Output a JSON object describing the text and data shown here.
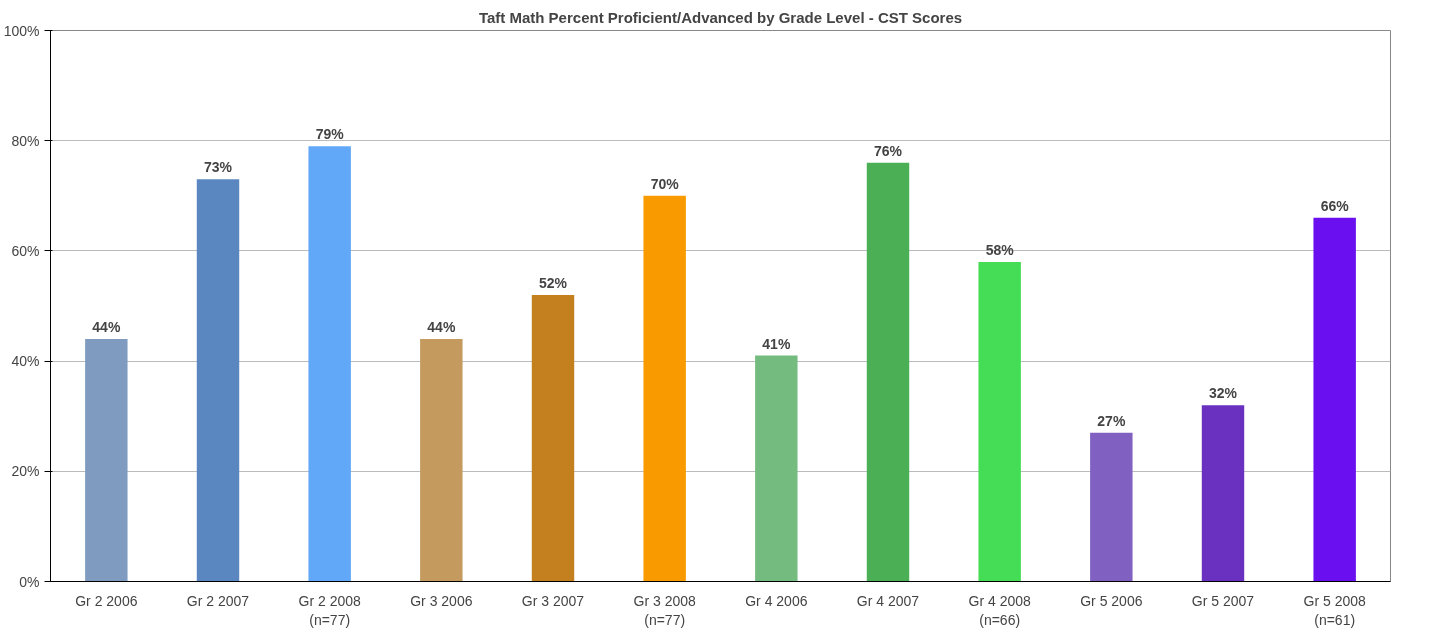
{
  "chart_data": {
    "type": "bar",
    "title": "Taft Math Percent Proficient/Advanced by Grade Level - CST Scores",
    "categories": [
      "Gr 2 2006",
      "Gr 2 2007",
      "Gr 2 2008\n(n=77)",
      "Gr 3 2006",
      "Gr 3 2007",
      "Gr 3 2008\n(n=77)",
      "Gr 4 2006",
      "Gr 4 2007",
      "Gr 4 2008\n(n=66)",
      "Gr 5 2006",
      "Gr 5 2007",
      "Gr 5 2008\n(n=61)"
    ],
    "values": [
      44,
      73,
      79,
      44,
      52,
      70,
      41,
      76,
      58,
      27,
      32,
      66
    ],
    "value_labels": [
      "44%",
      "73%",
      "79%",
      "44%",
      "52%",
      "70%",
      "41%",
      "76%",
      "58%",
      "27%",
      "32%",
      "66%"
    ],
    "colors": [
      "#7f9cc0",
      "#5b87c0",
      "#62a8f8",
      "#c49a5e",
      "#c47f1f",
      "#f99a00",
      "#74bb7f",
      "#4aaf55",
      "#44dd55",
      "#8060c0",
      "#6a30c0",
      "#6a10f0"
    ],
    "ylim": [
      0,
      100
    ],
    "yticks": [
      {
        "value": 0,
        "label": "0%"
      },
      {
        "value": 20,
        "label": "20%"
      },
      {
        "value": 40,
        "label": "40%"
      },
      {
        "value": 60,
        "label": "60%"
      },
      {
        "value": 80,
        "label": "80%"
      },
      {
        "value": 100,
        "label": "100%"
      }
    ],
    "grid": "y"
  }
}
